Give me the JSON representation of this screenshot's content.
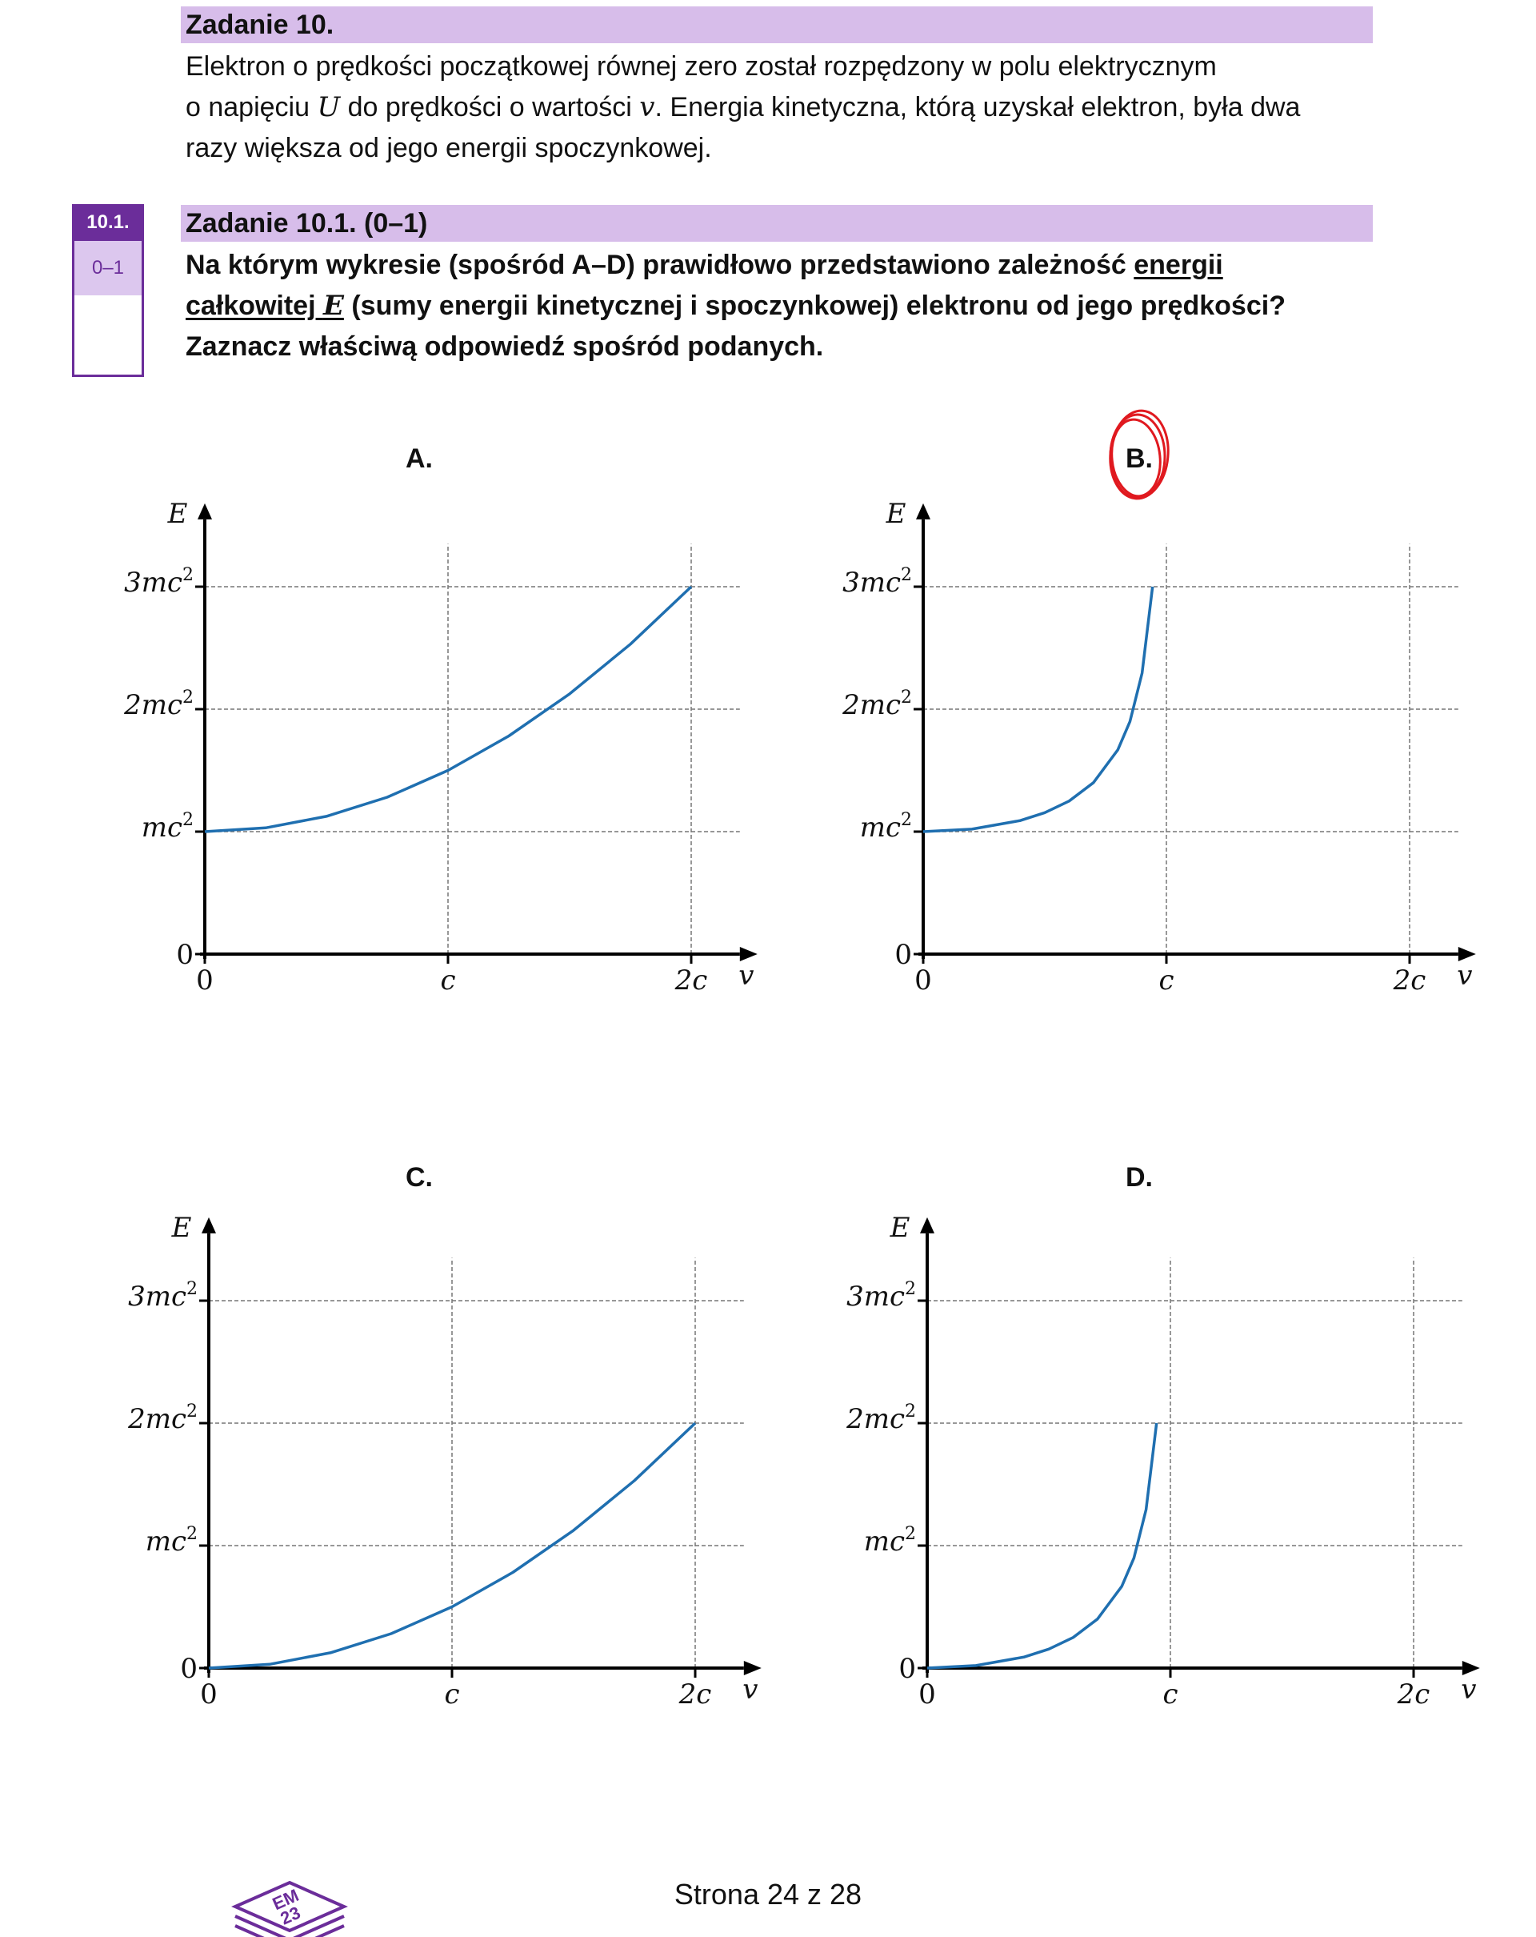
{
  "task": {
    "title": "Zadanie 10.",
    "intro": {
      "p1": "Elektron o prędkości początkowej równej zero został rozpędzony w polu elektrycznym",
      "p2a": "o napięciu ",
      "var_U": "U",
      "p2b": " do prędkości o wartości ",
      "var_v": "v",
      "p2c": ". Energia kinetyczna, którą uzyskał elektron, była dwa",
      "p3": "razy większa od jego energii spoczynkowej."
    }
  },
  "subtask": {
    "number": "10.1.",
    "points": "0–1",
    "title": "Zadanie 10.1. (0–1)",
    "question": {
      "l1a": "Na którym wykresie (spośród A–D) prawidłowo przedstawiono zależność ",
      "l1u": "energii",
      "l2u": "całkowitej",
      "var_E": "E",
      "l2b": " (sumy energii kinetycznej i spoczynkowej) elektronu od jego prędkości?",
      "l3": "Zaznacz właściwą odpowiedź spośród podanych."
    }
  },
  "selected_answer": "B",
  "colors": {
    "curve": "#1f6fb0",
    "mark": "#e0191f",
    "accent": "#6b2d9a",
    "band": "#d7bdea"
  },
  "axis_labels": {
    "y": "E",
    "x": "v",
    "x_ticks": [
      "0",
      "c",
      "2c"
    ],
    "y_ticks": [
      "0",
      "mc",
      "2mc",
      "3mc"
    ],
    "sup": "2"
  },
  "chart_data": [
    {
      "label": "A.",
      "type": "line",
      "xlabel": "v",
      "ylabel": "E",
      "xlim": [
        0,
        2
      ],
      "ylim": [
        0,
        3
      ],
      "series": [
        {
          "x": [
            0,
            0.25,
            0.5,
            0.75,
            1,
            1.25,
            1.5,
            1.75,
            2
          ],
          "y": [
            1,
            1.031,
            1.125,
            1.281,
            1.5,
            1.781,
            2.125,
            2.531,
            3
          ]
        }
      ]
    },
    {
      "label": "B.",
      "type": "line",
      "xlabel": "v",
      "ylabel": "E",
      "xlim": [
        0,
        2
      ],
      "ylim": [
        0,
        3
      ],
      "series": [
        {
          "x": [
            0,
            0.2,
            0.4,
            0.5,
            0.6,
            0.7,
            0.8,
            0.85,
            0.9,
            0.943
          ],
          "y": [
            1,
            1.02,
            1.091,
            1.155,
            1.25,
            1.4,
            1.667,
            1.898,
            2.294,
            3
          ]
        }
      ]
    },
    {
      "label": "C.",
      "type": "line",
      "xlabel": "v",
      "ylabel": "E",
      "xlim": [
        0,
        2
      ],
      "ylim": [
        0,
        3
      ],
      "series": [
        {
          "x": [
            0,
            0.25,
            0.5,
            0.75,
            1,
            1.25,
            1.5,
            1.75,
            2
          ],
          "y": [
            0,
            0.031,
            0.125,
            0.281,
            0.5,
            0.781,
            1.125,
            1.531,
            2
          ]
        }
      ]
    },
    {
      "label": "D.",
      "type": "line",
      "xlabel": "v",
      "ylabel": "E",
      "xlim": [
        0,
        2
      ],
      "ylim": [
        0,
        3
      ],
      "series": [
        {
          "x": [
            0,
            0.2,
            0.4,
            0.5,
            0.6,
            0.7,
            0.8,
            0.85,
            0.9,
            0.943
          ],
          "y": [
            0,
            0.02,
            0.091,
            0.155,
            0.25,
            0.4,
            0.667,
            0.898,
            1.294,
            2
          ]
        }
      ]
    }
  ],
  "footer": {
    "page": "Strona 24 z 28"
  },
  "logo": {
    "text_top": "EM",
    "text_bottom": "23"
  }
}
